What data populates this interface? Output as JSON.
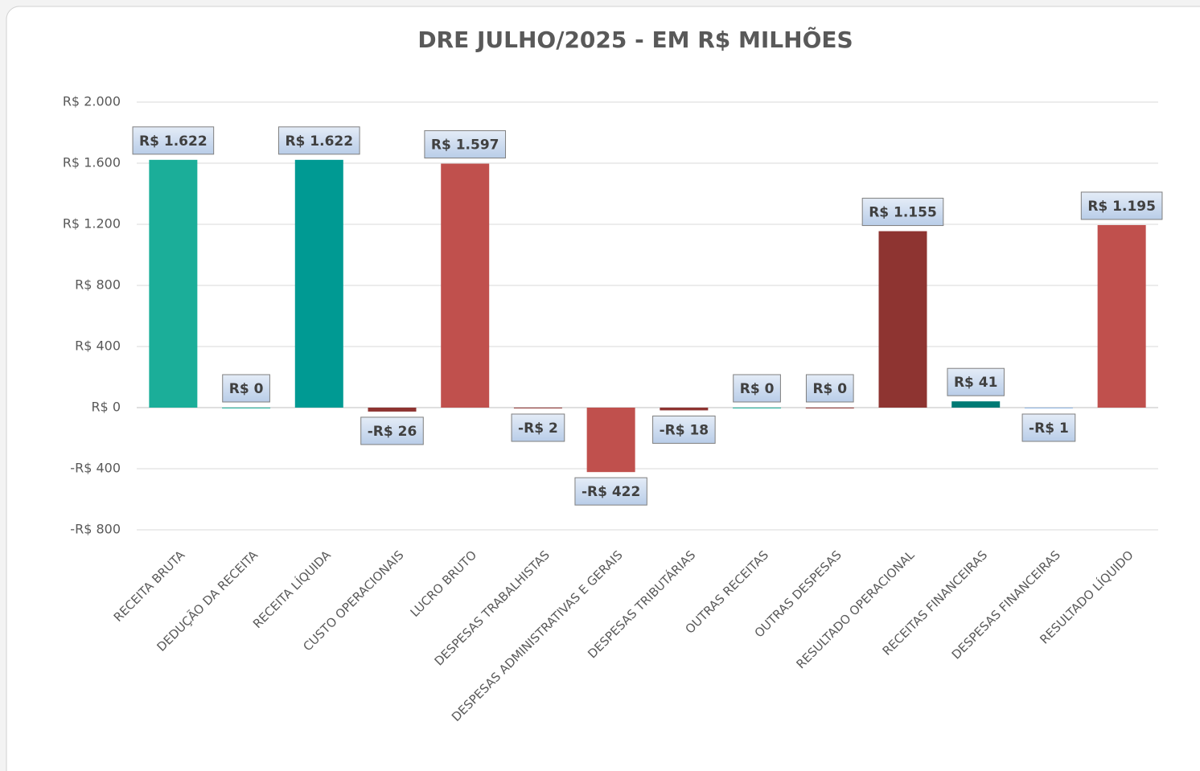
{
  "chart_data": {
    "type": "bar",
    "title": "DRE JULHO/2025 - EM R$ MILHÕES",
    "categories": [
      "RECEITA BRUTA",
      "DEDUÇÃO DA RECEITA",
      "RECEITA LÍQUIDA",
      "CUSTO OPERACIONAIS",
      "LUCRO BRUTO",
      "DESPESAS TRABALHISTAS",
      "DESPESAS ADMINISTRATIVAS E GERAIS",
      "DESPESAS TRIBUTÁRIAS",
      "OUTRAS RECEITAS",
      "OUTRAS DESPESAS",
      "RESULTADO OPERACIONAL",
      "RECEITAS FINANCEIRAS",
      "DESPESAS FINANCEIRAS",
      "RESULTADO LÍQUIDO"
    ],
    "values": [
      1622,
      0,
      1622,
      -26,
      1597,
      -2,
      -422,
      -18,
      0,
      0,
      1155,
      41,
      -1,
      1195
    ],
    "value_labels": [
      "R$ 1.622",
      "R$ 0",
      "R$ 1.622",
      "-R$ 26",
      "R$ 1.597",
      "-R$ 2",
      "-R$ 422",
      "-R$ 18",
      "R$ 0",
      "R$ 0",
      "R$ 1.155",
      "R$ 41",
      "-R$ 1",
      "R$ 1.195"
    ],
    "colors": [
      "#1bae99",
      "#1bae99",
      "#009a93",
      "#8e3431",
      "#c0504d",
      "#8e3431",
      "#c0504d",
      "#8e3431",
      "#1bae99",
      "#8e3431",
      "#8e3431",
      "#007a74",
      "#8db4e2",
      "#c0504d"
    ],
    "ylim": [
      -800,
      2000
    ],
    "yticks": [
      {
        "value": 2000,
        "label": "R$ 2.000"
      },
      {
        "value": 1600,
        "label": "R$ 1.600"
      },
      {
        "value": 1200,
        "label": "R$ 1.200"
      },
      {
        "value": 800,
        "label": "R$ 800"
      },
      {
        "value": 400,
        "label": "R$ 400"
      },
      {
        "value": 0,
        "label": "R$ 0"
      },
      {
        "value": -400,
        "label": "-R$ 400"
      },
      {
        "value": -800,
        "label": "-R$ 800"
      }
    ],
    "grid": true
  }
}
